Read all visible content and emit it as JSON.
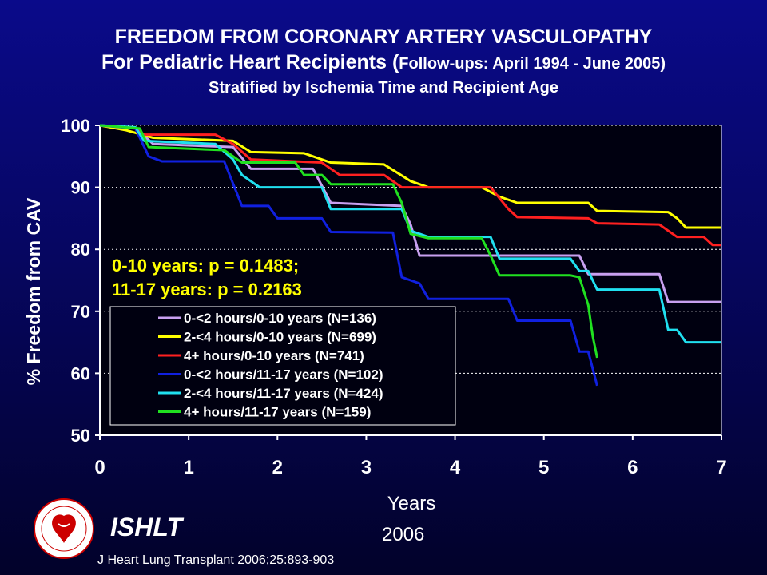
{
  "title": {
    "line1": "FREEDOM FROM CORONARY ARTERY VASCULOPATHY",
    "line2_main": "For Pediatric Heart Recipients (",
    "line2_small": "Follow-ups: April 1994 - June 2005)",
    "line3": "Stratified by Ischemia Time and Recipient Age"
  },
  "chart_data": {
    "type": "line",
    "xlabel": "Years",
    "ylabel": "% Freedom from CAV",
    "xlim": [
      0,
      7
    ],
    "ylim": [
      50,
      100
    ],
    "xticks": [
      0,
      1,
      2,
      3,
      4,
      5,
      6,
      7
    ],
    "yticks": [
      50,
      60,
      70,
      80,
      90,
      100
    ],
    "grid": "horizontal dotted",
    "legend_position": "lower-left",
    "annotations": [
      "0-10 years: p = 0.1483;",
      "11-17 years: p = 0.2163"
    ],
    "annotation_color": "#ffff00",
    "series": [
      {
        "name": "0-<2 hours/0-10 years (N=136)",
        "color": "#c8a0f0",
        "points": [
          [
            0,
            100
          ],
          [
            0.4,
            99.6
          ],
          [
            0.6,
            97
          ],
          [
            1.5,
            96.5
          ],
          [
            1.7,
            93
          ],
          [
            2.4,
            93
          ],
          [
            2.6,
            87.5
          ],
          [
            3.4,
            87
          ],
          [
            3.5,
            84
          ],
          [
            3.6,
            79
          ],
          [
            5.4,
            79
          ],
          [
            5.5,
            76
          ],
          [
            6.3,
            76
          ],
          [
            6.4,
            71.5
          ],
          [
            7,
            71.5
          ]
        ]
      },
      {
        "name": "2-<4 hours/0-10 years (N=699)",
        "color": "#ffff00",
        "points": [
          [
            0,
            100
          ],
          [
            0.3,
            99.2
          ],
          [
            0.6,
            98
          ],
          [
            1.5,
            97.5
          ],
          [
            1.7,
            95.7
          ],
          [
            2.3,
            95.5
          ],
          [
            2.6,
            94
          ],
          [
            3.2,
            93.7
          ],
          [
            3.5,
            91
          ],
          [
            3.7,
            90
          ],
          [
            4.3,
            90
          ],
          [
            4.5,
            88.5
          ],
          [
            4.7,
            87.5
          ],
          [
            5.5,
            87.5
          ],
          [
            5.6,
            86.2
          ],
          [
            6.4,
            86
          ],
          [
            6.5,
            85
          ],
          [
            6.6,
            83.5
          ],
          [
            7,
            83.5
          ]
        ]
      },
      {
        "name": "4+ hours/0-10 years (N=741)",
        "color": "#ff2020",
        "points": [
          [
            0,
            100
          ],
          [
            0.4,
            99.5
          ],
          [
            0.5,
            98.5
          ],
          [
            1.3,
            98.5
          ],
          [
            1.5,
            97
          ],
          [
            1.7,
            94.5
          ],
          [
            2.5,
            94
          ],
          [
            2.7,
            92
          ],
          [
            3.2,
            92
          ],
          [
            3.4,
            90
          ],
          [
            4.4,
            90
          ],
          [
            4.6,
            86.5
          ],
          [
            4.7,
            85.2
          ],
          [
            5.5,
            85
          ],
          [
            5.6,
            84.2
          ],
          [
            6.3,
            84
          ],
          [
            6.4,
            83
          ],
          [
            6.5,
            82
          ],
          [
            6.8,
            82
          ],
          [
            6.9,
            80.7
          ],
          [
            7,
            80.7
          ]
        ]
      },
      {
        "name": "0-<2 hours/11-17 years (N=102)",
        "color": "#1020e0",
        "points": [
          [
            0,
            100
          ],
          [
            0.4,
            99.5
          ],
          [
            0.55,
            95
          ],
          [
            0.7,
            94.2
          ],
          [
            1.4,
            94.2
          ],
          [
            1.6,
            87
          ],
          [
            1.9,
            87
          ],
          [
            2,
            85
          ],
          [
            2.5,
            85
          ],
          [
            2.6,
            82.8
          ],
          [
            3.3,
            82.7
          ],
          [
            3.4,
            75.5
          ],
          [
            3.6,
            74.5
          ],
          [
            3.7,
            72
          ],
          [
            4.6,
            72
          ],
          [
            4.7,
            68.5
          ],
          [
            5.3,
            68.5
          ],
          [
            5.4,
            63.5
          ],
          [
            5.5,
            63.5
          ],
          [
            5.6,
            58
          ]
        ]
      },
      {
        "name": "2-<4 hours/11-17 years (N=424)",
        "color": "#20e0f0",
        "points": [
          [
            0,
            100
          ],
          [
            0.4,
            99.7
          ],
          [
            0.5,
            97.5
          ],
          [
            1.3,
            97
          ],
          [
            1.5,
            94.5
          ],
          [
            1.6,
            92
          ],
          [
            1.8,
            90
          ],
          [
            2.5,
            90
          ],
          [
            2.6,
            86.5
          ],
          [
            3.4,
            86.5
          ],
          [
            3.5,
            83
          ],
          [
            3.7,
            82
          ],
          [
            4.4,
            82
          ],
          [
            4.5,
            78.5
          ],
          [
            5.3,
            78.5
          ],
          [
            5.4,
            76.5
          ],
          [
            5.5,
            76.5
          ],
          [
            5.6,
            73.5
          ],
          [
            6.3,
            73.5
          ],
          [
            6.4,
            67
          ],
          [
            6.5,
            67
          ],
          [
            6.6,
            65
          ],
          [
            7,
            65
          ]
        ]
      },
      {
        "name": "4+ hours/11-17 years (N=159)",
        "color": "#20e020",
        "points": [
          [
            0,
            100
          ],
          [
            0.45,
            99.5
          ],
          [
            0.55,
            96.5
          ],
          [
            1.4,
            96
          ],
          [
            1.6,
            94
          ],
          [
            2.2,
            94
          ],
          [
            2.3,
            92
          ],
          [
            2.5,
            92
          ],
          [
            2.6,
            90.5
          ],
          [
            3.3,
            90.5
          ],
          [
            3.4,
            87.5
          ],
          [
            3.5,
            82.5
          ],
          [
            3.7,
            81.8
          ],
          [
            4.3,
            81.8
          ],
          [
            4.4,
            79
          ],
          [
            4.5,
            75.8
          ],
          [
            5.3,
            75.8
          ],
          [
            5.4,
            75.5
          ],
          [
            5.5,
            71
          ],
          [
            5.55,
            66
          ],
          [
            5.6,
            62.5
          ]
        ]
      }
    ]
  },
  "footer": {
    "org": "ISHLT",
    "year": "2006",
    "citation": "J Heart Lung Transplant 2006;25:893-903"
  }
}
